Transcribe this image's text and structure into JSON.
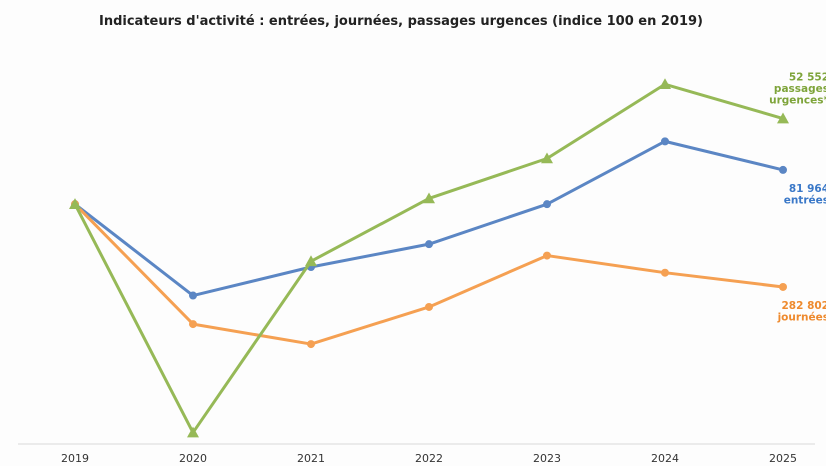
{
  "chart_data": {
    "type": "line",
    "title": "Indicateurs d'activité : entrées, journées, passages urgences (indice 100 en 2019)",
    "xlabel": "",
    "ylabel": "",
    "categories": [
      "2019",
      "2020",
      "2021",
      "2022",
      "2023",
      "2024",
      "2025"
    ],
    "ylim": [
      58,
      127
    ],
    "grid": false,
    "legend": "none",
    "series": [
      {
        "key": "entrees",
        "color": "#5b86c4",
        "marker": "circle",
        "label_lines": [
          "81 964",
          "entrées"
        ],
        "label_color": "#3a78c8",
        "values": [
          100,
          84,
          89,
          93,
          100,
          111,
          106
        ]
      },
      {
        "key": "journees",
        "color": "#f5a052",
        "marker": "circle",
        "label_lines": [
          "282 802",
          "journées"
        ],
        "label_color": "#ee8a2e",
        "values": [
          100,
          79,
          75.5,
          82,
          91,
          88,
          85.5
        ]
      },
      {
        "key": "urgences",
        "color": "#96b957",
        "marker": "triangle",
        "label_lines": [
          "52 552",
          "passages",
          "urgences*"
        ],
        "label_color": "#7ea43a",
        "values": [
          100,
          60,
          90,
          101,
          108,
          121,
          115
        ]
      }
    ]
  }
}
